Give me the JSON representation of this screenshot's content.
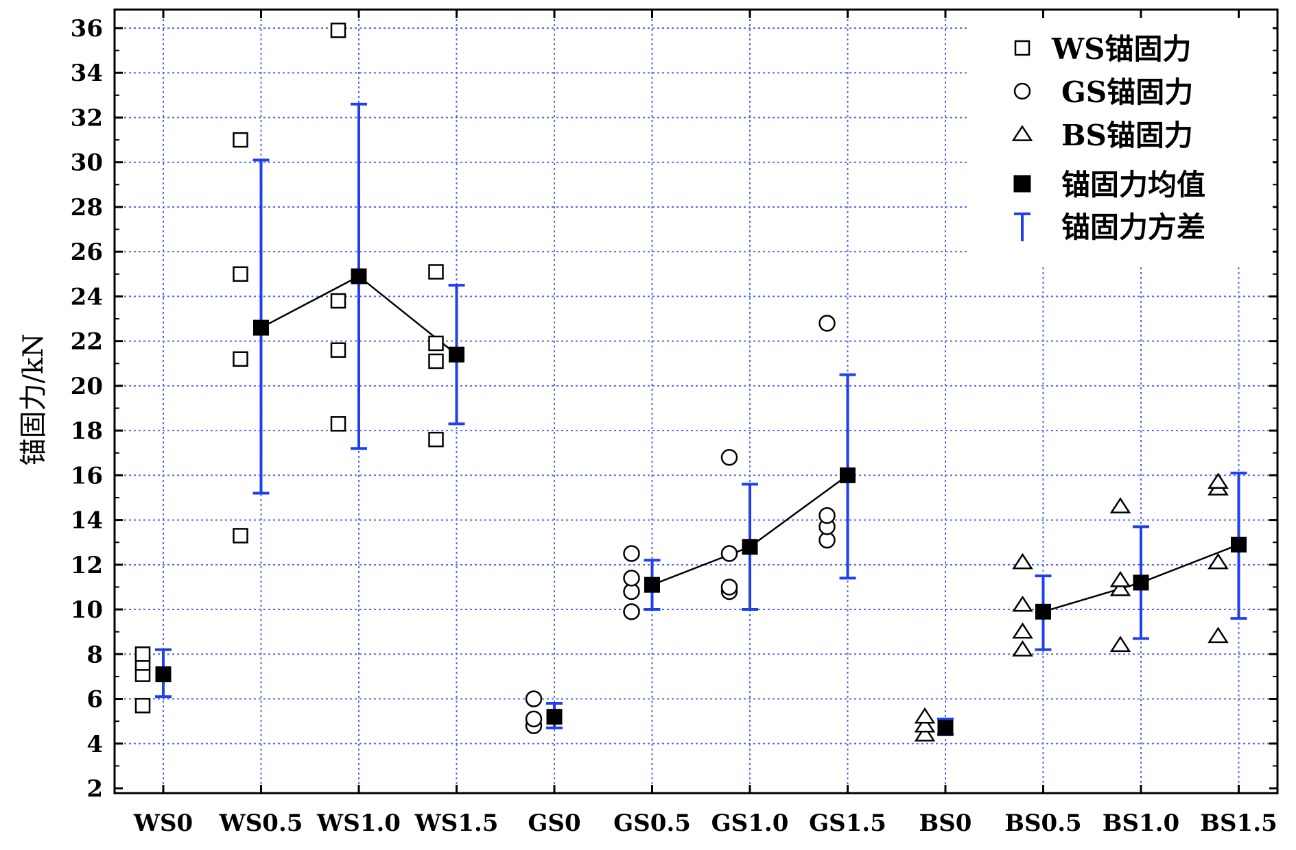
{
  "chart_data": {
    "type": "scatter",
    "title": "",
    "xlabel": "",
    "ylabel": "锚固力/kN",
    "ylim": [
      2,
      36
    ],
    "yticks": [
      2,
      4,
      6,
      8,
      10,
      12,
      14,
      16,
      18,
      20,
      22,
      24,
      26,
      28,
      30,
      32,
      34,
      36
    ],
    "grid": true,
    "legend_position": "top-right",
    "categories": [
      "WS0",
      "WS0.5",
      "WS1.0",
      "WS1.5",
      "GS0",
      "GS0.5",
      "GS1.0",
      "GS1.5",
      "BS0",
      "BS0.5",
      "BS1.0",
      "BS1.5"
    ],
    "colors": {
      "error_bar": "#1f3ff0",
      "mean_line": "#000000",
      "grid": "#4d6bf0"
    },
    "legend": [
      {
        "label": "WS锚固力",
        "marker": "square-open"
      },
      {
        "label": "GS锚固力",
        "marker": "circle-open"
      },
      {
        "label": "BS锚固力",
        "marker": "triangle-open"
      },
      {
        "label": "锚固力均值",
        "marker": "square-filled"
      },
      {
        "label": "锚固力方差",
        "marker": "errorbar"
      }
    ],
    "samples": [
      {
        "category": "WS0",
        "group": "WS",
        "values": [
          5.7,
          7.1,
          7.6,
          8.0
        ]
      },
      {
        "category": "WS0.5",
        "group": "WS",
        "values": [
          13.3,
          21.2,
          25.0,
          31.0
        ]
      },
      {
        "category": "WS1.0",
        "group": "WS",
        "values": [
          18.3,
          21.6,
          23.8,
          35.9
        ]
      },
      {
        "category": "WS1.5",
        "group": "WS",
        "values": [
          17.6,
          21.1,
          21.9,
          25.1
        ]
      },
      {
        "category": "GS0",
        "group": "GS",
        "values": [
          4.8,
          5.1,
          6.0
        ]
      },
      {
        "category": "GS0.5",
        "group": "GS",
        "values": [
          9.9,
          10.8,
          11.4,
          12.5
        ]
      },
      {
        "category": "GS1.0",
        "group": "GS",
        "values": [
          10.8,
          11.0,
          12.5,
          16.8
        ]
      },
      {
        "category": "GS1.5",
        "group": "GS",
        "values": [
          13.1,
          13.7,
          14.2,
          22.8
        ]
      },
      {
        "category": "BS0",
        "group": "BS",
        "values": [
          4.4,
          4.8,
          5.2
        ]
      },
      {
        "category": "BS0.5",
        "group": "BS",
        "values": [
          8.2,
          9.0,
          10.2,
          12.1
        ]
      },
      {
        "category": "BS1.0",
        "group": "BS",
        "values": [
          8.4,
          10.9,
          11.3,
          14.6
        ]
      },
      {
        "category": "BS1.5",
        "group": "BS",
        "values": [
          8.8,
          12.1,
          15.4,
          15.7
        ]
      }
    ],
    "means": [
      7.1,
      22.6,
      24.9,
      21.4,
      5.2,
      11.1,
      12.8,
      16.0,
      4.7,
      9.9,
      11.2,
      12.9
    ],
    "error_bars": [
      {
        "low": 6.1,
        "high": 8.2
      },
      {
        "low": 15.2,
        "high": 30.1
      },
      {
        "low": 17.2,
        "high": 32.6
      },
      {
        "low": 18.3,
        "high": 24.5
      },
      {
        "low": 4.7,
        "high": 5.8
      },
      {
        "low": 10.0,
        "high": 12.2
      },
      {
        "low": 10.0,
        "high": 15.6
      },
      {
        "low": 11.4,
        "high": 20.5
      },
      {
        "low": 4.4,
        "high": 5.1
      },
      {
        "low": 8.2,
        "high": 11.5
      },
      {
        "low": 8.7,
        "high": 13.7
      },
      {
        "low": 9.6,
        "high": 16.1
      }
    ],
    "mean_line_groups": [
      [
        1,
        2,
        3
      ],
      [
        5,
        6,
        7
      ],
      [
        9,
        10,
        11
      ]
    ]
  }
}
